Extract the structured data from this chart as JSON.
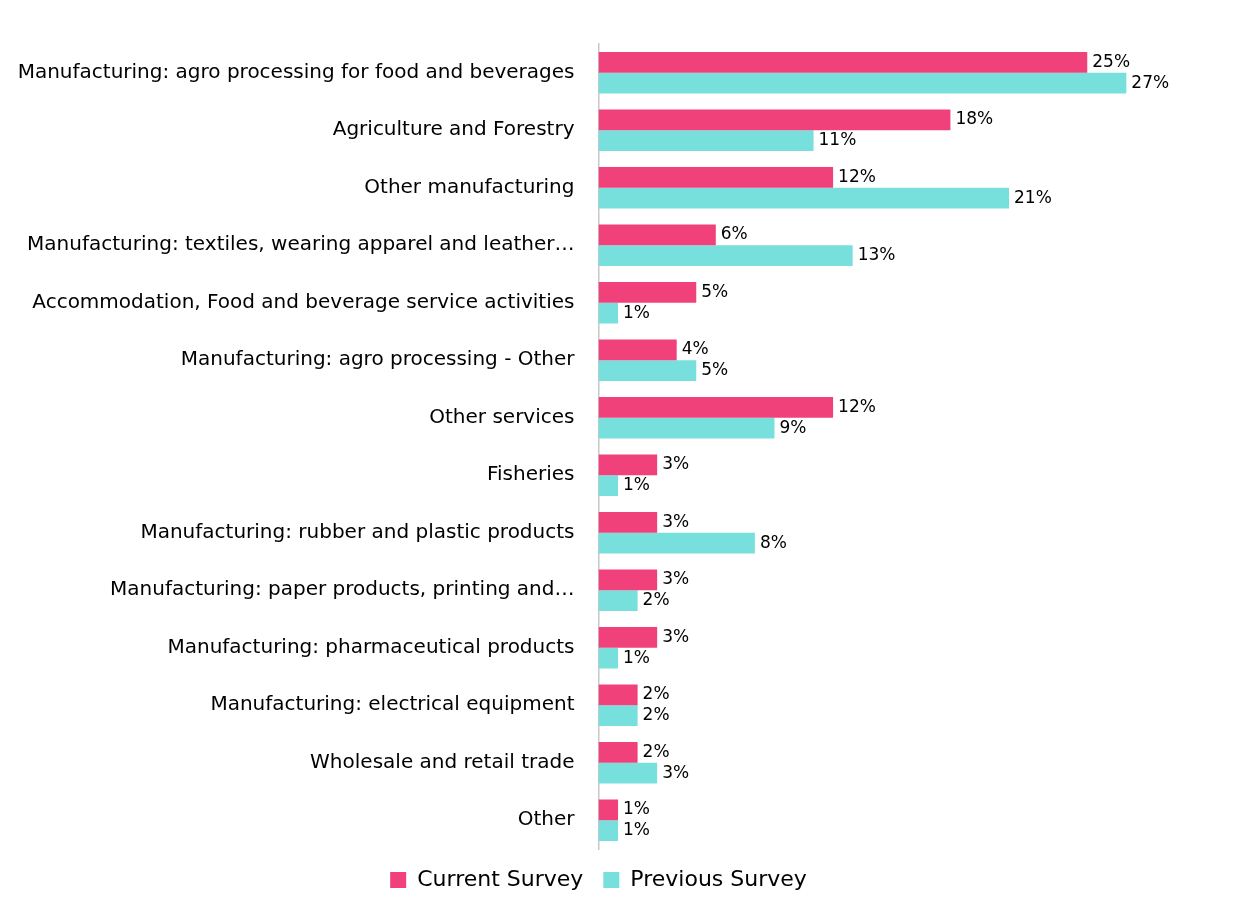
{
  "chart_data": {
    "type": "bar",
    "orientation": "horizontal",
    "categories": [
      "Manufacturing: agro processing for food and beverages",
      "Agriculture and Forestry",
      "Other manufacturing",
      "Manufacturing: textiles, wearing apparel and leather…",
      "Accommodation, Food and beverage service activities",
      "Manufacturing: agro processing - Other",
      "Other services",
      "Fisheries",
      "Manufacturing: rubber and plastic products",
      "Manufacturing: paper products, printing and…",
      "Manufacturing: pharmaceutical products",
      "Manufacturing: electrical equipment",
      "Wholesale and retail trade",
      "Other"
    ],
    "series": [
      {
        "name": "Current Survey",
        "color": "#f0417a",
        "values": [
          25,
          18,
          12,
          6,
          5,
          4,
          12,
          3,
          3,
          3,
          3,
          2,
          2,
          1
        ],
        "value_labels": [
          "25%",
          "18%",
          "12%",
          "6%",
          "5%",
          "4%",
          "12%",
          "3%",
          "3%",
          "3%",
          "3%",
          "2%",
          "2%",
          "1%"
        ]
      },
      {
        "name": "Previous Survey",
        "color": "#77dfdc",
        "values": [
          27,
          11,
          21,
          13,
          1,
          5,
          9,
          1,
          8,
          2,
          1,
          2,
          3,
          1
        ],
        "value_labels": [
          "27%",
          "11%",
          "21%",
          "13%",
          "1%",
          "5%",
          "9%",
          "1%",
          "8%",
          "2%",
          "1%",
          "2%",
          "3%",
          "1%"
        ]
      }
    ],
    "legend": "bottom",
    "grid": false
  }
}
